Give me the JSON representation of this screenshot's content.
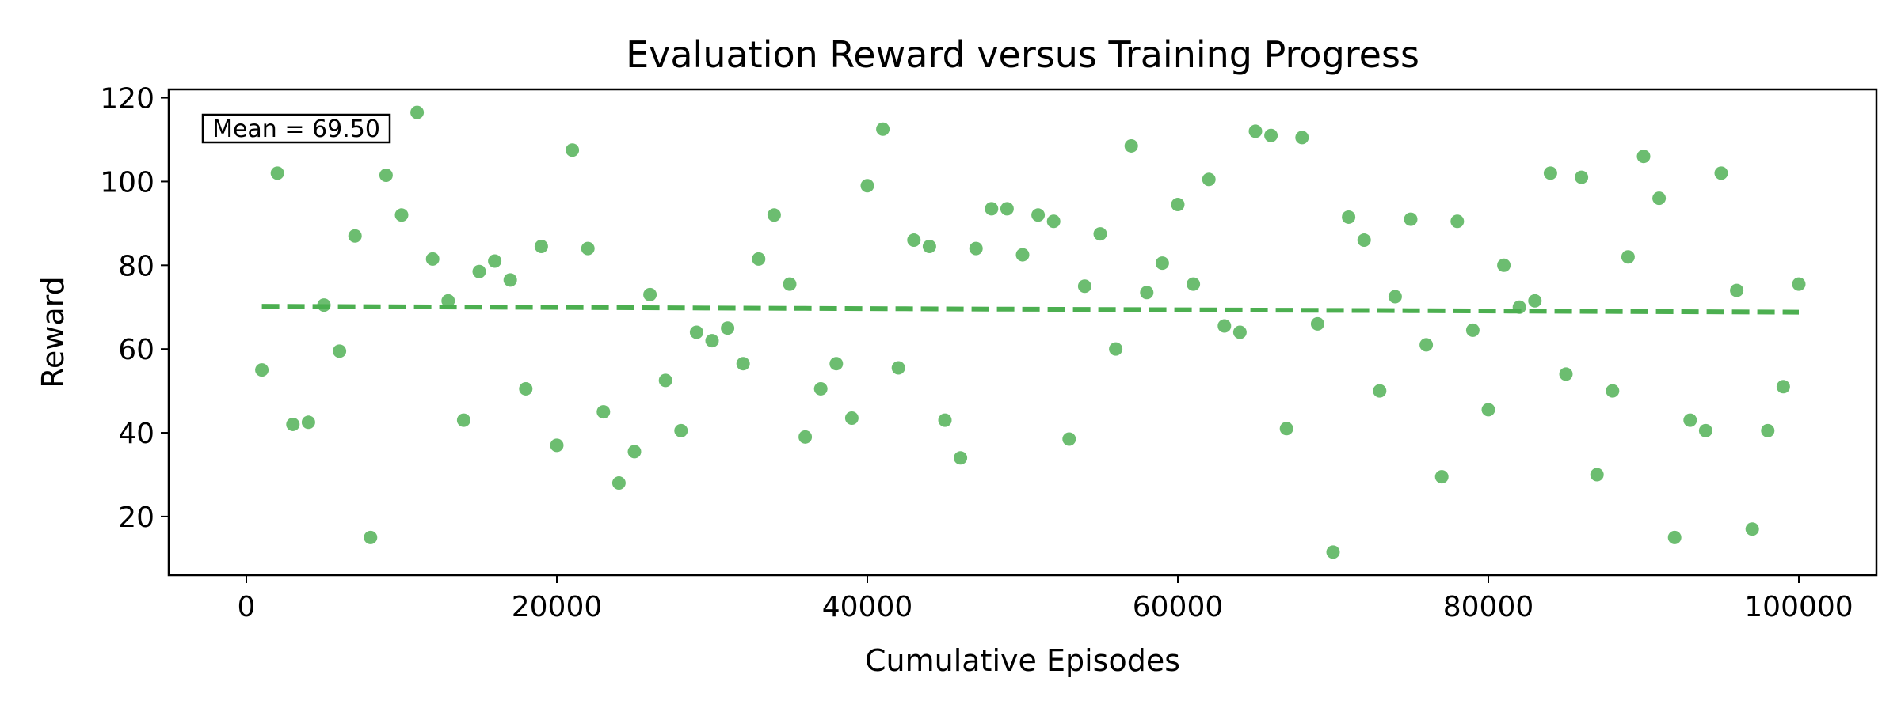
{
  "chart_data": {
    "type": "scatter",
    "title": "Evaluation Reward versus Training Progress",
    "xlabel": "Cumulative Episodes",
    "ylabel": "Reward",
    "xlim": [
      -5000,
      105000
    ],
    "ylim": [
      6,
      122
    ],
    "xticks": [
      0,
      20000,
      40000,
      60000,
      80000,
      100000
    ],
    "yticks": [
      20,
      40,
      60,
      80,
      100,
      120
    ],
    "grid": false,
    "legend": "none",
    "annotation": "Mean = 69.50",
    "colors": {
      "points": "#4caf50",
      "trend": "#4caf50"
    },
    "trend_line": {
      "x": [
        1000,
        100000
      ],
      "y": [
        70.2,
        68.8
      ]
    },
    "x": [
      1000,
      2000,
      3000,
      4000,
      5000,
      6000,
      7000,
      8000,
      9000,
      10000,
      11000,
      12000,
      13000,
      14000,
      15000,
      16000,
      17000,
      18000,
      19000,
      20000,
      21000,
      22000,
      23000,
      24000,
      25000,
      26000,
      27000,
      28000,
      29000,
      30000,
      31000,
      32000,
      33000,
      34000,
      35000,
      36000,
      37000,
      38000,
      39000,
      40000,
      41000,
      42000,
      43000,
      44000,
      45000,
      46000,
      47000,
      48000,
      49000,
      50000,
      51000,
      52000,
      53000,
      54000,
      55000,
      56000,
      57000,
      58000,
      59000,
      60000,
      61000,
      62000,
      63000,
      64000,
      65000,
      66000,
      67000,
      68000,
      69000,
      70000,
      71000,
      72000,
      73000,
      74000,
      75000,
      76000,
      77000,
      78000,
      79000,
      80000,
      81000,
      82000,
      83000,
      84000,
      85000,
      86000,
      87000,
      88000,
      89000,
      90000,
      91000,
      92000,
      93000,
      94000,
      95000,
      96000,
      97000,
      98000,
      99000,
      100000
    ],
    "y": [
      55,
      102,
      42,
      42.5,
      70.5,
      59.5,
      87,
      15,
      101.5,
      92,
      116.5,
      81.5,
      71.5,
      43,
      78.5,
      81,
      76.5,
      50.5,
      84.5,
      37,
      107.5,
      84,
      45,
      28,
      35.5,
      73,
      52.5,
      40.5,
      64,
      62,
      65,
      56.5,
      81.5,
      92,
      75.5,
      39,
      50.5,
      56.5,
      43.5,
      99,
      112.5,
      55.5,
      86,
      84.5,
      43,
      34,
      84,
      93.5,
      93.5,
      82.5,
      92,
      90.5,
      38.5,
      75,
      87.5,
      60,
      108.5,
      73.5,
      80.5,
      94.5,
      75.5,
      100.5,
      65.5,
      64,
      112,
      111,
      41,
      110.5,
      66,
      11.5,
      91.5,
      86,
      50,
      72.5,
      91,
      61,
      29.5,
      90.5,
      64.5,
      45.5,
      80,
      70,
      71.5,
      102,
      54,
      101,
      30,
      50,
      82,
      106,
      96,
      15,
      43,
      40.5,
      102,
      74,
      17,
      40.5,
      51,
      75.5
    ]
  }
}
